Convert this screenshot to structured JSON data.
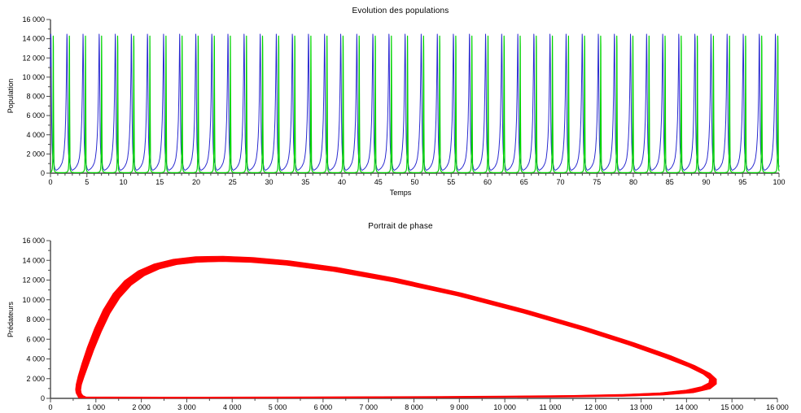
{
  "page": {
    "background": "#ffffff"
  },
  "axis_style": {
    "line_color": "#4a4a4a",
    "tick_color": "#4a4a4a",
    "tick_label_color": "#000000",
    "tick_label_size": 9
  },
  "chart_data": [
    {
      "type": "line",
      "title": "Evolution des populations",
      "xlabel": "Temps",
      "ylabel": "Population",
      "xlim": [
        0,
        100
      ],
      "ylim": [
        0,
        16000
      ],
      "x_major_step": 5,
      "x_minor_step": 1,
      "y_major_step": 2000,
      "y_minor_step": 1000,
      "grid": false,
      "legend": "none",
      "series": [
        {
          "id": "series-blue",
          "color": "#2b2bd0",
          "line_width": 1,
          "waveform": {
            "period": 2.21,
            "cycle_start_offset": -1.718,
            "cycles": 47,
            "cycle_points": [
              [
                0,
                900
              ],
              [
                0.04,
                560
              ],
              [
                0.08,
                380
              ],
              [
                0.13,
                300
              ],
              [
                0.2,
                360
              ],
              [
                0.3,
                500
              ],
              [
                0.4,
                720
              ],
              [
                0.5,
                1080
              ],
              [
                0.57,
                1600
              ],
              [
                0.63,
                2450
              ],
              [
                0.68,
                3750
              ],
              [
                0.72,
                5500
              ],
              [
                0.75,
                7900
              ],
              [
                0.775,
                10700
              ],
              [
                0.79,
                13100
              ],
              [
                0.8,
                14480
              ],
              [
                0.812,
                14000
              ],
              [
                0.825,
                11800
              ],
              [
                0.84,
                8400
              ],
              [
                0.855,
                5400
              ],
              [
                0.875,
                3200
              ],
              [
                0.9,
                2050
              ],
              [
                0.93,
                1550
              ],
              [
                0.965,
                1150
              ],
              [
                1,
                900
              ]
            ]
          }
        },
        {
          "id": "series-green",
          "color": "#00d400",
          "line_width": 1.2,
          "waveform": {
            "period": 2.21,
            "cycle_start_offset": -1.718,
            "cycles": 47,
            "cycle_points": [
              [
                0,
                420
              ],
              [
                0.03,
                220
              ],
              [
                0.07,
                130
              ],
              [
                0.13,
                85
              ],
              [
                0.25,
                60
              ],
              [
                0.4,
                48
              ],
              [
                0.55,
                48
              ],
              [
                0.68,
                60
              ],
              [
                0.76,
                85
              ],
              [
                0.82,
                130
              ],
              [
                0.86,
                220
              ],
              [
                0.89,
                430
              ],
              [
                0.91,
                900
              ],
              [
                0.925,
                2300
              ],
              [
                0.935,
                5800
              ],
              [
                0.943,
                10500
              ],
              [
                0.95,
                14280
              ],
              [
                0.958,
                13200
              ],
              [
                0.966,
                9200
              ],
              [
                0.975,
                5300
              ],
              [
                0.985,
                2700
              ],
              [
                0.993,
                1100
              ],
              [
                1,
                420
              ]
            ]
          }
        }
      ]
    },
    {
      "type": "line",
      "title": "Portrait de phase",
      "xlabel": "",
      "ylabel": "Prédateurs",
      "xlim": [
        0,
        16000
      ],
      "ylim": [
        0,
        16000
      ],
      "x_major_step": 1000,
      "x_minor_step": 500,
      "y_major_step": 2000,
      "y_minor_step": 1000,
      "grid": false,
      "legend": "none",
      "loop": {
        "color": "#ff0000",
        "band_outer": [
          [
            620,
            30
          ],
          [
            1200,
            15
          ],
          [
            2500,
            10
          ],
          [
            4500,
            20
          ],
          [
            6500,
            35
          ],
          [
            8500,
            55
          ],
          [
            10000,
            85
          ],
          [
            11500,
            130
          ],
          [
            12600,
            200
          ],
          [
            13500,
            330
          ],
          [
            14150,
            560
          ],
          [
            14520,
            950
          ],
          [
            14660,
            1450
          ],
          [
            14660,
            1950
          ],
          [
            14520,
            2550
          ],
          [
            14180,
            3350
          ],
          [
            13650,
            4350
          ],
          [
            12850,
            5650
          ],
          [
            11800,
            7200
          ],
          [
            10500,
            8950
          ],
          [
            9050,
            10700
          ],
          [
            7600,
            12200
          ],
          [
            6300,
            13300
          ],
          [
            5250,
            13970
          ],
          [
            4450,
            14300
          ],
          [
            3800,
            14430
          ],
          [
            3200,
            14380
          ],
          [
            2700,
            14120
          ],
          [
            2280,
            13650
          ],
          [
            1930,
            12950
          ],
          [
            1630,
            11950
          ],
          [
            1380,
            10650
          ],
          [
            1160,
            9000
          ],
          [
            970,
            7100
          ],
          [
            810,
            5200
          ],
          [
            690,
            3550
          ],
          [
            610,
            2300
          ],
          [
            565,
            1450
          ],
          [
            550,
            900
          ],
          [
            560,
            550
          ],
          [
            590,
            300
          ],
          [
            620,
            30
          ]
        ],
        "band_inner": [
          [
            780,
            165
          ],
          [
            1300,
            145
          ],
          [
            2500,
            140
          ],
          [
            4500,
            150
          ],
          [
            6500,
            170
          ],
          [
            8500,
            200
          ],
          [
            10000,
            240
          ],
          [
            11500,
            305
          ],
          [
            12600,
            410
          ],
          [
            13420,
            580
          ],
          [
            13990,
            850
          ],
          [
            14330,
            1200
          ],
          [
            14490,
            1580
          ],
          [
            14500,
            1950
          ],
          [
            14370,
            2430
          ],
          [
            14040,
            3180
          ],
          [
            13500,
            4150
          ],
          [
            12720,
            5420
          ],
          [
            11690,
            6930
          ],
          [
            10400,
            8650
          ],
          [
            8960,
            10380
          ],
          [
            7520,
            11820
          ],
          [
            6230,
            12870
          ],
          [
            5190,
            13500
          ],
          [
            4400,
            13790
          ],
          [
            3790,
            13870
          ],
          [
            3240,
            13800
          ],
          [
            2780,
            13560
          ],
          [
            2400,
            13110
          ],
          [
            2070,
            12440
          ],
          [
            1780,
            11470
          ],
          [
            1530,
            10200
          ],
          [
            1310,
            8600
          ],
          [
            1120,
            6750
          ],
          [
            955,
            4900
          ],
          [
            830,
            3300
          ],
          [
            740,
            2150
          ],
          [
            685,
            1380
          ],
          [
            668,
            870
          ],
          [
            680,
            520
          ],
          [
            715,
            300
          ],
          [
            780,
            165
          ]
        ]
      }
    }
  ]
}
